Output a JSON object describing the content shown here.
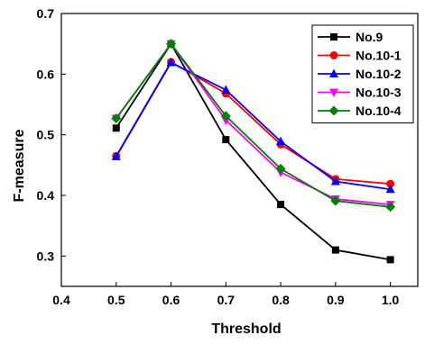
{
  "chart_data": {
    "type": "line",
    "title": "",
    "xlabel": "Threshold",
    "ylabel": "F-measure",
    "xlim": [
      0.4,
      1.05
    ],
    "ylim": [
      0.25,
      0.7
    ],
    "xticks": [
      0.4,
      0.5,
      0.6,
      0.7,
      0.8,
      0.9,
      1.0
    ],
    "xtick_labels": [
      "0.4",
      "0.5",
      "0.6",
      "0.7",
      "0.8",
      "0.9",
      "1.0"
    ],
    "yticks": [
      0.3,
      0.4,
      0.5,
      0.6,
      0.7
    ],
    "ytick_labels": [
      "0.3",
      "0.4",
      "0.5",
      "0.6",
      "0.7"
    ],
    "grid": false,
    "legend_position": "top-right",
    "x": [
      0.5,
      0.6,
      0.7,
      0.8,
      0.9,
      1.0
    ],
    "series": [
      {
        "name": "No.9",
        "color": "#000000",
        "marker": "square",
        "values": [
          0.511,
          0.65,
          0.492,
          0.385,
          0.31,
          0.294
        ]
      },
      {
        "name": "No.10-1",
        "color": "#ff0000",
        "marker": "circle",
        "values": [
          0.465,
          0.62,
          0.568,
          0.484,
          0.427,
          0.419
        ]
      },
      {
        "name": "No.10-2",
        "color": "#0000ff",
        "marker": "triangle-up",
        "values": [
          0.464,
          0.619,
          0.574,
          0.489,
          0.423,
          0.41
        ]
      },
      {
        "name": "No.10-3",
        "color": "#ff00ff",
        "marker": "triangle-down",
        "values": [
          0.527,
          0.65,
          0.524,
          0.438,
          0.394,
          0.385
        ]
      },
      {
        "name": "No.10-4",
        "color": "#008000",
        "marker": "diamond",
        "values": [
          0.527,
          0.65,
          0.531,
          0.444,
          0.391,
          0.381
        ]
      }
    ]
  }
}
